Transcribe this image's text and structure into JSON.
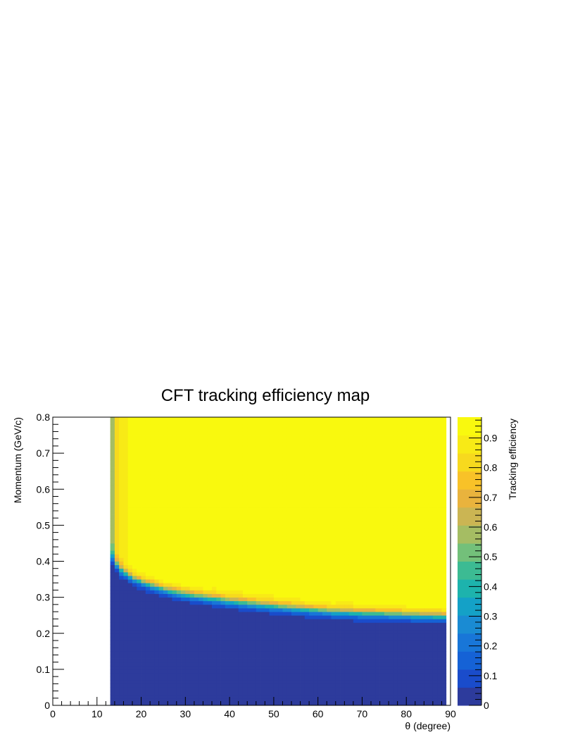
{
  "chart_data": {
    "type": "heatmap",
    "title": "CFT tracking efficiency map",
    "xlabel": "θ (degree)",
    "ylabel": "Momentum (GeV/c)",
    "zlabel": "Tracking efficiency",
    "xlim": [
      0,
      90
    ],
    "ylim": [
      0,
      0.8
    ],
    "zlim": [
      0,
      0.97
    ],
    "x_ticks": [
      "0",
      "10",
      "20",
      "30",
      "40",
      "50",
      "60",
      "70",
      "80",
      "90"
    ],
    "y_ticks": [
      "0",
      "0.1",
      "0.2",
      "0.3",
      "0.4",
      "0.5",
      "0.6",
      "0.7",
      "0.8"
    ],
    "z_ticks": [
      "0",
      "0.1",
      "0.2",
      "0.3",
      "0.4",
      "0.5",
      "0.6",
      "0.7",
      "0.8",
      "0.9"
    ],
    "x_bin_width_deg": 1,
    "y_bin_width": 0.01,
    "theta_range_filled": [
      13,
      89
    ],
    "efficiency_threshold_momentum": [
      {
        "theta": 13,
        "p": 0.42
      },
      {
        "theta": 15,
        "p": 0.38
      },
      {
        "theta": 18,
        "p": 0.355
      },
      {
        "theta": 22,
        "p": 0.335
      },
      {
        "theta": 26,
        "p": 0.32
      },
      {
        "theta": 30,
        "p": 0.31
      },
      {
        "theta": 35,
        "p": 0.3
      },
      {
        "theta": 40,
        "p": 0.29
      },
      {
        "theta": 45,
        "p": 0.283
      },
      {
        "theta": 50,
        "p": 0.276
      },
      {
        "theta": 55,
        "p": 0.27
      },
      {
        "theta": 60,
        "p": 0.265
      },
      {
        "theta": 65,
        "p": 0.26
      },
      {
        "theta": 70,
        "p": 0.257
      },
      {
        "theta": 75,
        "p": 0.255
      },
      {
        "theta": 80,
        "p": 0.252
      },
      {
        "theta": 85,
        "p": 0.25
      },
      {
        "theta": 89,
        "p": 0.248
      }
    ],
    "plateau_efficiency_by_theta": [
      {
        "from": 13,
        "to": 14,
        "z": 0.55
      },
      {
        "from": 14,
        "to": 15,
        "z": 0.82
      },
      {
        "from": 15,
        "to": 16,
        "z": 0.86
      },
      {
        "from": 16,
        "to": 17,
        "z": 0.9
      },
      {
        "from": 17,
        "to": 18,
        "z": 0.93
      },
      {
        "from": 18,
        "to": 36,
        "z": 0.97
      },
      {
        "from": 36,
        "to": 56,
        "z": 0.94
      },
      {
        "from": 56,
        "to": 64,
        "z": 0.97
      },
      {
        "from": 64,
        "to": 68,
        "z": 0.94
      },
      {
        "from": 68,
        "to": 89,
        "z": 0.97
      }
    ],
    "low_momentum_efficiency": 0.0
  },
  "colors": {
    "palette": [
      "#2d3b9c",
      "#1a4ccb",
      "#1562d6",
      "#1876d8",
      "#1a8bd3",
      "#14a1c7",
      "#1db3ad",
      "#3cbb93",
      "#73c07a",
      "#a5bd63",
      "#cbb553",
      "#e9b33d",
      "#f8c228",
      "#f7d91e",
      "#f8ea16",
      "#f9f90e"
    ],
    "frame": "#000000"
  }
}
